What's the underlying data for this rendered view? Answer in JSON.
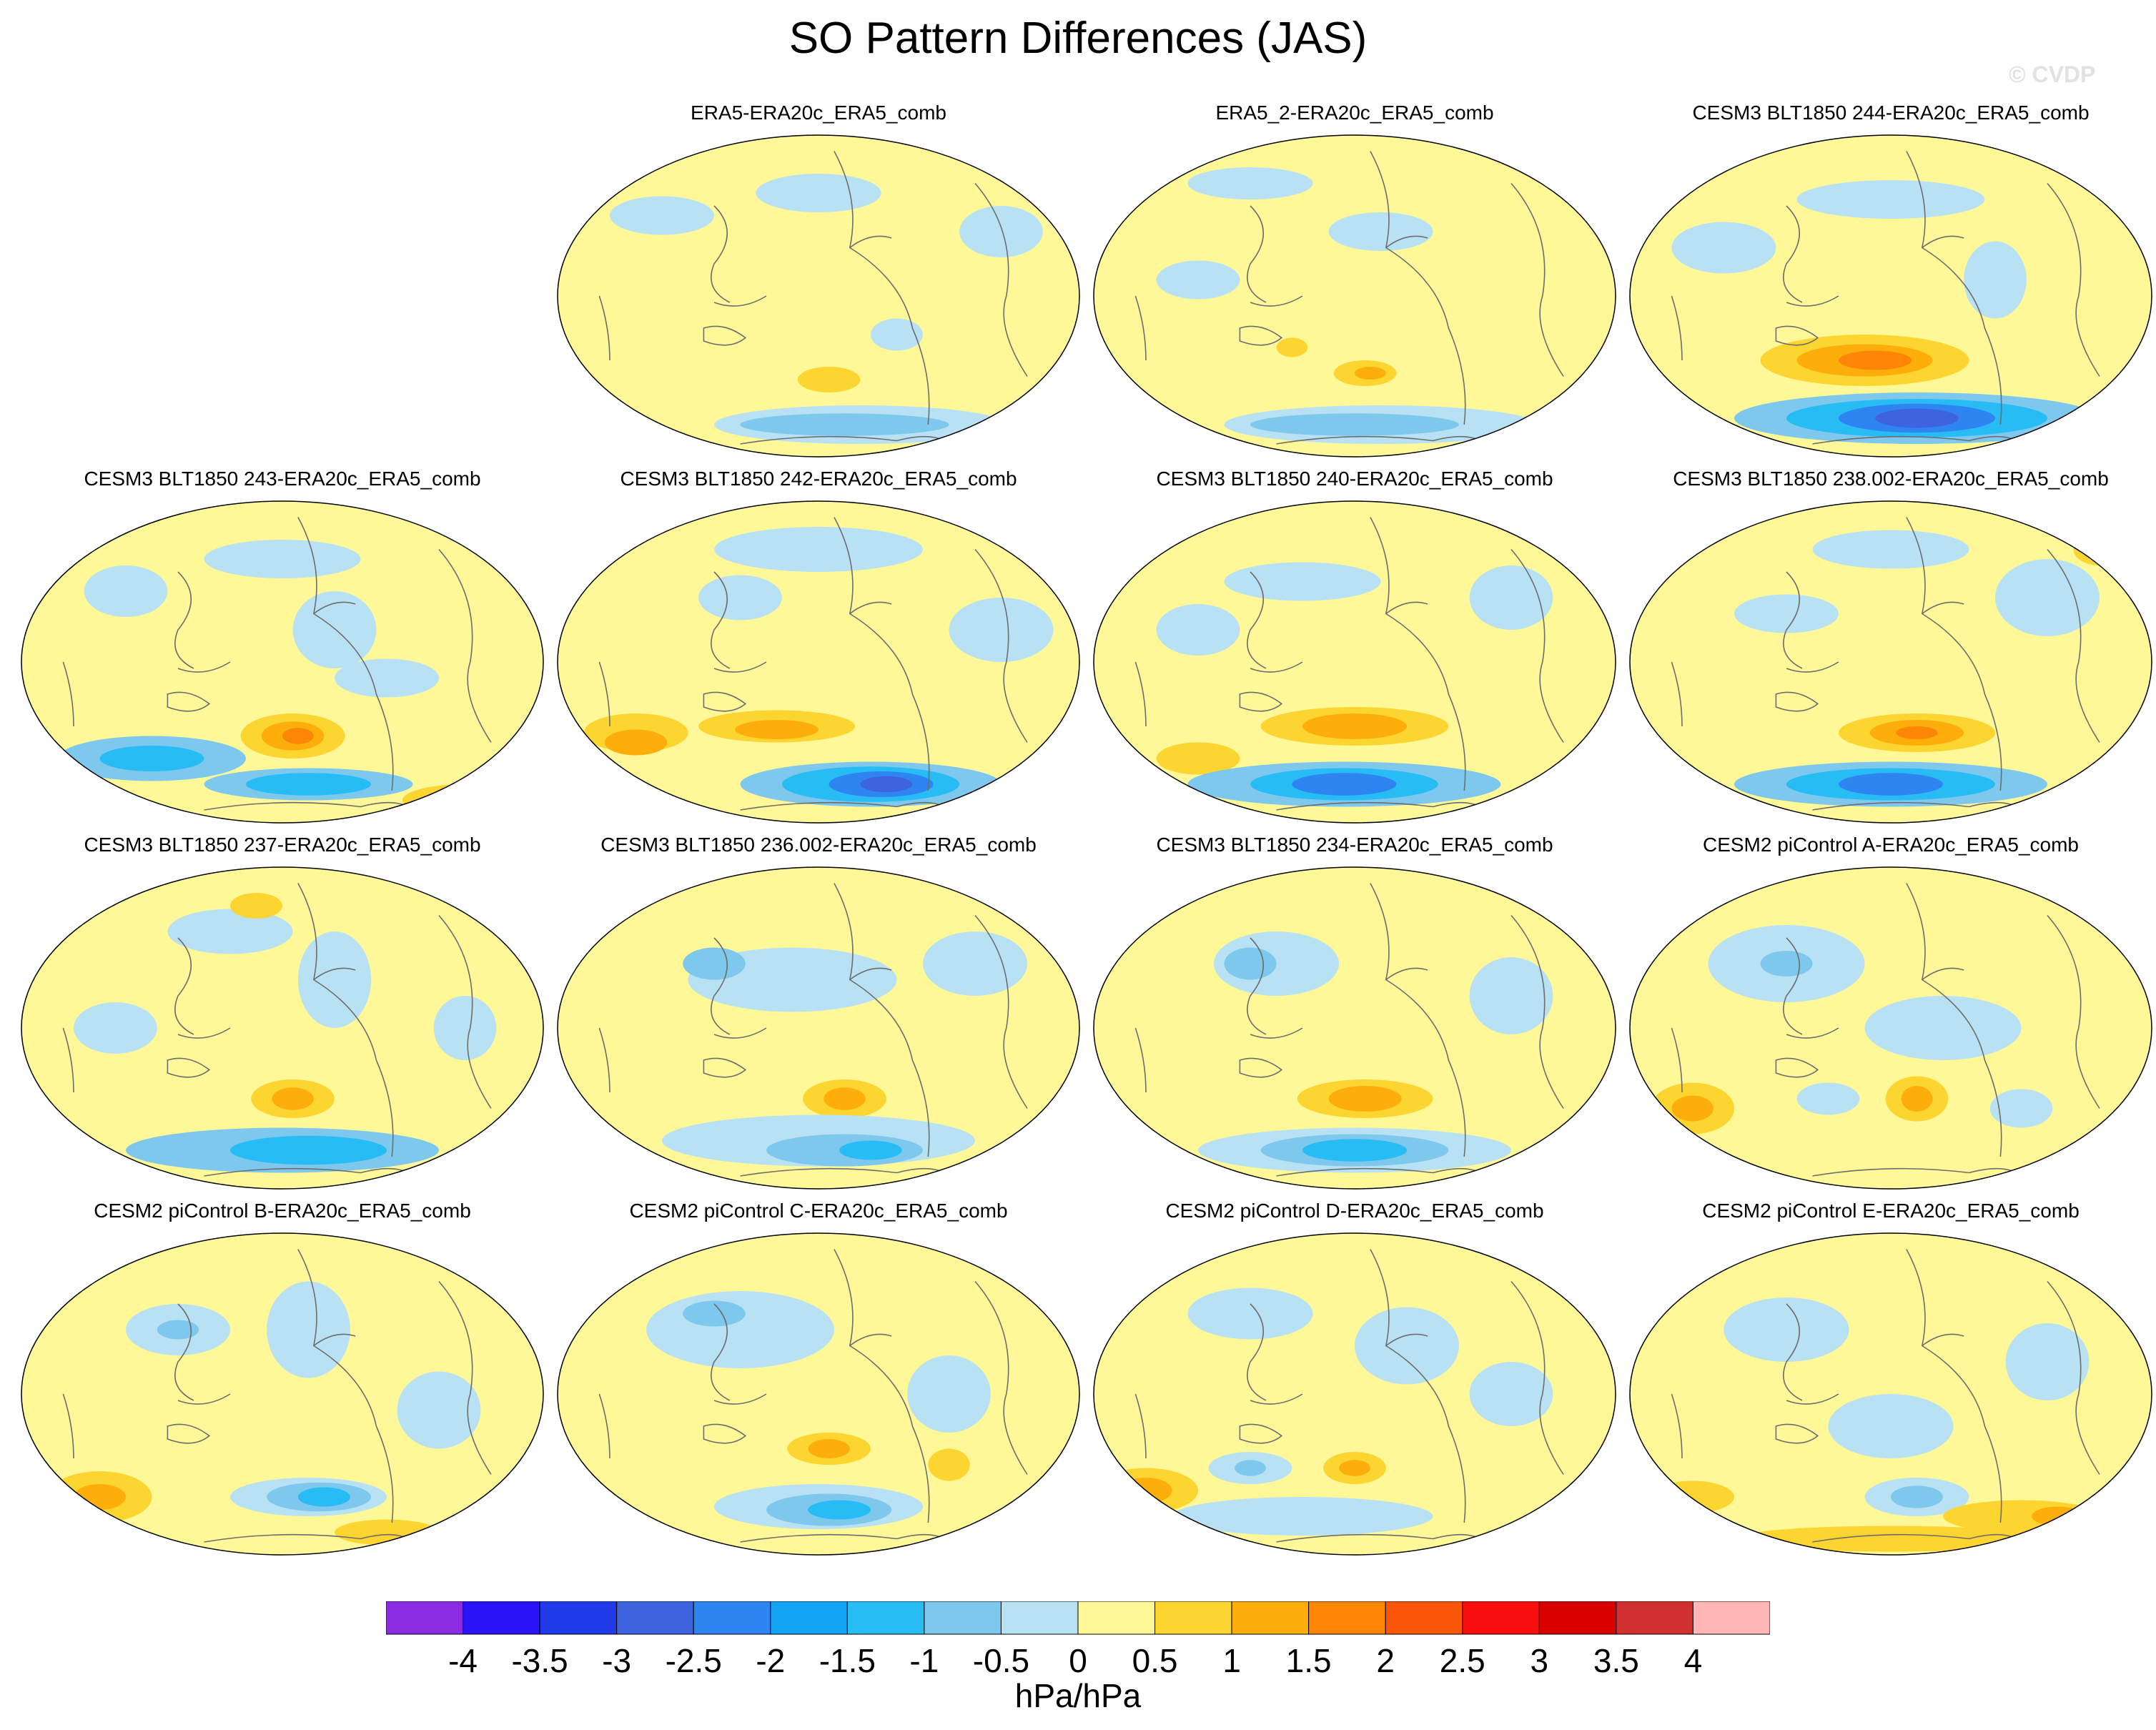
{
  "title": "SO Pattern Differences (JAS)",
  "watermark": "© CVDP",
  "units": "hPa/hPa",
  "colorbar": {
    "labels": [
      "-4",
      "-3.5",
      "-3",
      "-2.5",
      "-2",
      "-1.5",
      "-1",
      "-0.5",
      "0",
      "0.5",
      "1",
      "1.5",
      "2",
      "2.5",
      "3",
      "3.5",
      "4"
    ],
    "colors": [
      "#8b2be2",
      "#2a14f5",
      "#1f3be8",
      "#3d64de",
      "#2e85f2",
      "#12a3f4",
      "#27bcf4",
      "#7ec8ee",
      "#b9e1f4",
      "#fff899",
      "#fdd531",
      "#fdae0b",
      "#fd8607",
      "#f9560a",
      "#f80e0e",
      "#d90000",
      "#d03030",
      "#ffb6b6"
    ]
  },
  "panels": [
    {
      "id": "era5",
      "title": "ERA5-ERA20c_ERA5_comb"
    },
    {
      "id": "era5_2",
      "title": "ERA5_2-ERA20c_ERA5_comb"
    },
    {
      "id": "blt244",
      "title": "CESM3 BLT1850 244-ERA20c_ERA5_comb"
    },
    {
      "id": "blt243",
      "title": "CESM3 BLT1850 243-ERA20c_ERA5_comb"
    },
    {
      "id": "blt242",
      "title": "CESM3 BLT1850 242-ERA20c_ERA5_comb"
    },
    {
      "id": "blt240",
      "title": "CESM3 BLT1850 240-ERA20c_ERA5_comb"
    },
    {
      "id": "blt238",
      "title": "CESM3 BLT1850 238.002-ERA20c_ERA5_comb"
    },
    {
      "id": "blt237",
      "title": "CESM3 BLT1850 237-ERA20c_ERA5_comb"
    },
    {
      "id": "blt236",
      "title": "CESM3 BLT1850 236.002-ERA20c_ERA5_comb"
    },
    {
      "id": "blt234",
      "title": "CESM3 BLT1850 234-ERA20c_ERA5_comb"
    },
    {
      "id": "picA",
      "title": "CESM2 piControl A-ERA20c_ERA5_comb"
    },
    {
      "id": "picB",
      "title": "CESM2 piControl B-ERA20c_ERA5_comb"
    },
    {
      "id": "picC",
      "title": "CESM2 piControl C-ERA20c_ERA5_comb"
    },
    {
      "id": "picD",
      "title": "CESM2 piControl D-ERA20c_ERA5_comb"
    },
    {
      "id": "picE",
      "title": "CESM2 piControl E-ERA20c_ERA5_comb"
    }
  ]
}
